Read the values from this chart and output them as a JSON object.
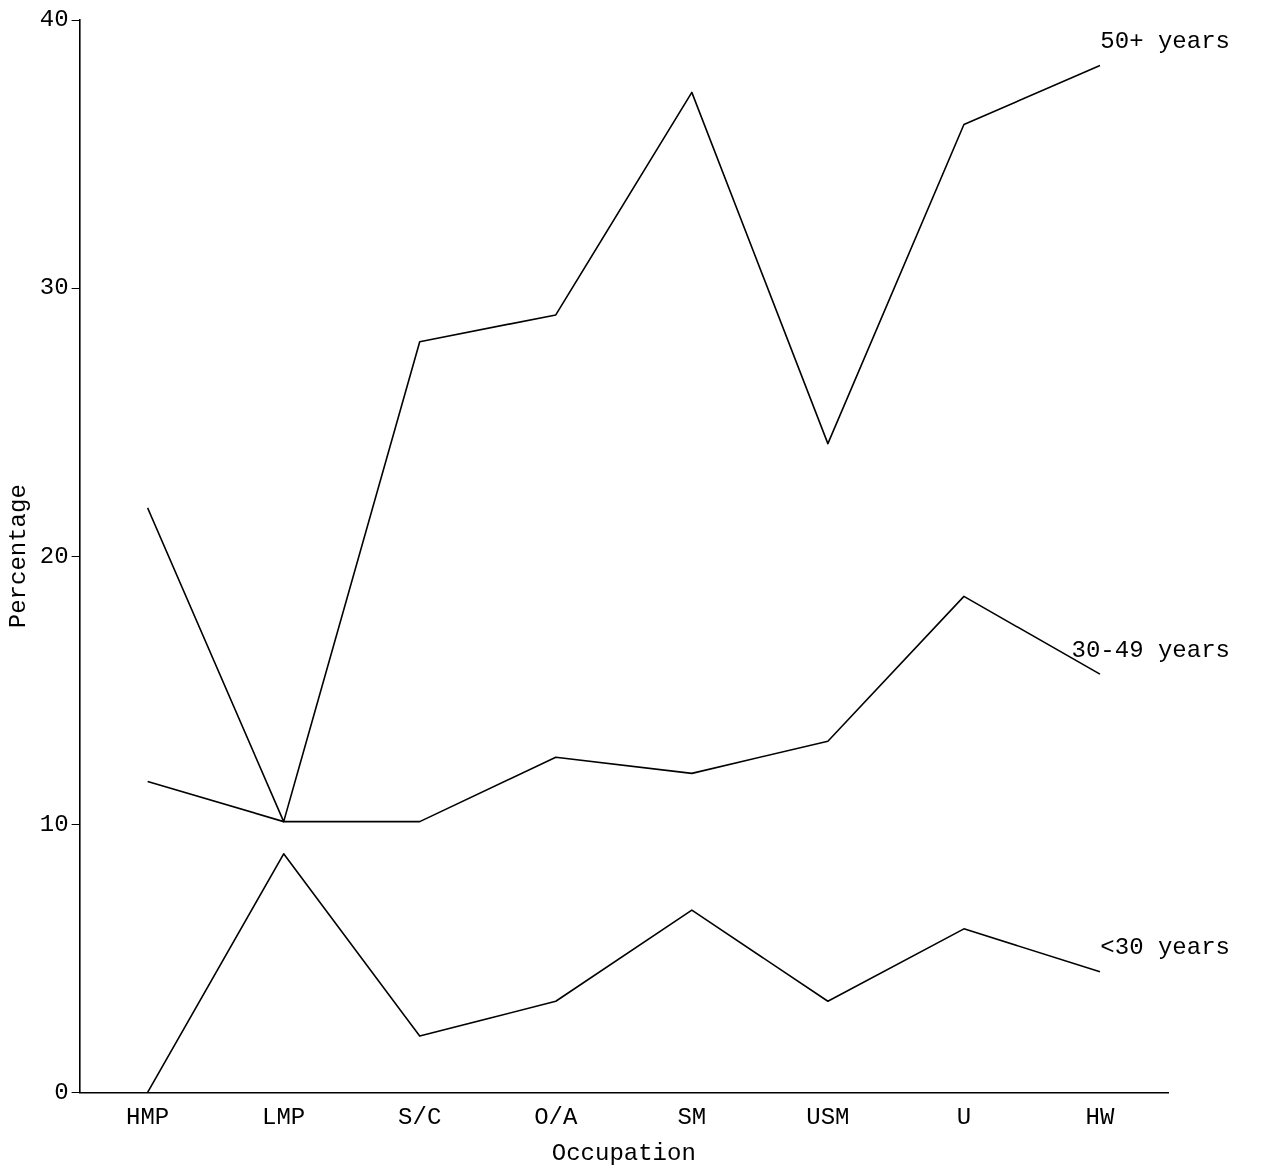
{
  "chart_data": {
    "type": "line",
    "xlabel": "Occupation",
    "ylabel": "Percentage",
    "categories": [
      "HMP",
      "LMP",
      "S/C",
      "O/A",
      "SM",
      "USM",
      "U",
      "HW"
    ],
    "series": [
      {
        "name": "50+ years",
        "color": "#000000",
        "values": [
          21.8,
          10.1,
          28.0,
          29.0,
          37.3,
          24.2,
          36.1,
          38.3
        ]
      },
      {
        "name": "30-49 years",
        "color": "#000000",
        "values": [
          11.6,
          10.1,
          10.1,
          12.5,
          11.9,
          13.1,
          18.5,
          15.6
        ]
      },
      {
        "name": "<30 years",
        "color": "#000000",
        "values": [
          0,
          8.9,
          2.1,
          3.4,
          6.8,
          3.4,
          6.1,
          4.5
        ]
      }
    ],
    "ylim": [
      0,
      40
    ],
    "yticks": [
      0,
      10,
      20,
      30,
      40
    ],
    "grid": false,
    "legend": false,
    "marker": "none",
    "line_style": "solid"
  }
}
